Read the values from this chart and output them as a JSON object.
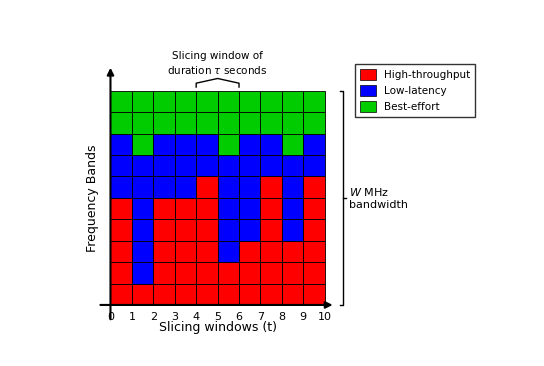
{
  "xlabel": "Slicing windows (t)",
  "ylabel": "Frequency Bands",
  "colors": {
    "R": "#ff0000",
    "B": "#0000ff",
    "G": "#00cc00"
  },
  "legend_labels": [
    "High-throughput",
    "Low-latency",
    "Best-effort"
  ],
  "legend_colors": [
    "#ff0000",
    "#0000ff",
    "#00cc00"
  ],
  "cell_colors": [
    [
      "R",
      "R",
      "R",
      "R",
      "R",
      "R",
      "R",
      "R",
      "R",
      "R"
    ],
    [
      "R",
      "B",
      "R",
      "R",
      "R",
      "R",
      "R",
      "R",
      "R",
      "R"
    ],
    [
      "R",
      "B",
      "R",
      "R",
      "R",
      "B",
      "R",
      "R",
      "R",
      "R"
    ],
    [
      "R",
      "B",
      "R",
      "R",
      "R",
      "B",
      "B",
      "R",
      "B",
      "R"
    ],
    [
      "R",
      "B",
      "R",
      "R",
      "R",
      "B",
      "B",
      "R",
      "B",
      "R"
    ],
    [
      "B",
      "B",
      "B",
      "B",
      "R",
      "B",
      "B",
      "R",
      "B",
      "R"
    ],
    [
      "B",
      "B",
      "B",
      "B",
      "B",
      "B",
      "B",
      "B",
      "B",
      "B"
    ],
    [
      "B",
      "G",
      "B",
      "B",
      "B",
      "G",
      "B",
      "B",
      "G",
      "B"
    ],
    [
      "G",
      "G",
      "G",
      "G",
      "G",
      "G",
      "G",
      "G",
      "G",
      "G"
    ],
    [
      "G",
      "G",
      "G",
      "G",
      "G",
      "G",
      "G",
      "G",
      "G",
      "G"
    ]
  ],
  "figwidth": 5.44,
  "figheight": 3.66,
  "dpi": 100
}
